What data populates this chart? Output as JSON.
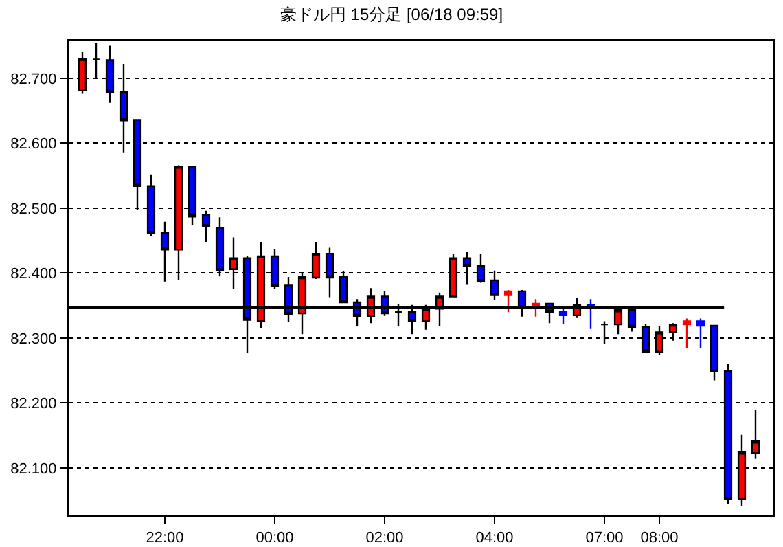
{
  "chart_data": {
    "type": "candlestick",
    "title": "豪ドル円 15分足 [06/18 09:59]",
    "categories": [
      null,
      null,
      null,
      null,
      null,
      null,
      "22:00",
      null,
      null,
      null,
      null,
      null,
      null,
      null,
      "00:00",
      null,
      null,
      null,
      null,
      null,
      null,
      null,
      "02:00",
      null,
      null,
      null,
      null,
      null,
      null,
      null,
      "04:00",
      null,
      null,
      null,
      null,
      null,
      null,
      null,
      "07:00",
      null,
      null,
      null,
      "08:00",
      null,
      null,
      null,
      null,
      null,
      null,
      null
    ],
    "ohlc": [
      [
        82.681,
        82.74,
        82.676,
        82.73
      ],
      [
        82.729,
        82.754,
        82.699,
        82.729
      ],
      [
        82.728,
        82.75,
        82.662,
        82.678
      ],
      [
        82.679,
        82.722,
        82.586,
        82.635
      ],
      [
        82.636,
        82.636,
        82.497,
        82.534
      ],
      [
        82.534,
        82.552,
        82.457,
        82.461
      ],
      [
        82.462,
        82.479,
        82.387,
        82.436
      ],
      [
        82.436,
        82.566,
        82.389,
        82.564
      ],
      [
        82.564,
        82.564,
        82.474,
        82.487
      ],
      [
        82.489,
        82.496,
        82.448,
        82.472
      ],
      [
        82.47,
        82.486,
        82.395,
        82.404
      ],
      [
        82.406,
        82.455,
        82.376,
        82.423
      ],
      [
        82.423,
        82.426,
        82.277,
        82.328
      ],
      [
        82.326,
        82.448,
        82.315,
        82.426
      ],
      [
        82.426,
        82.437,
        82.376,
        82.38
      ],
      [
        82.381,
        82.394,
        82.325,
        82.337
      ],
      [
        82.338,
        82.4,
        82.306,
        82.394
      ],
      [
        82.393,
        82.448,
        82.391,
        82.43
      ],
      [
        82.43,
        82.439,
        82.363,
        82.393
      ],
      [
        82.394,
        82.403,
        82.355,
        82.355
      ],
      [
        82.355,
        82.36,
        82.318,
        82.334
      ],
      [
        82.334,
        82.377,
        82.323,
        82.364
      ],
      [
        82.364,
        82.372,
        82.334,
        82.338
      ],
      [
        82.34,
        82.352,
        82.318,
        82.34
      ],
      [
        82.34,
        82.351,
        82.306,
        82.326
      ],
      [
        82.326,
        82.351,
        82.313,
        82.345
      ],
      [
        82.345,
        82.37,
        82.318,
        82.364
      ],
      [
        82.364,
        82.429,
        82.364,
        82.423
      ],
      [
        82.423,
        82.433,
        82.382,
        82.411
      ],
      [
        82.411,
        82.429,
        82.385,
        82.387
      ],
      [
        82.389,
        82.404,
        82.359,
        82.366
      ],
      [
        82.366,
        82.374,
        82.34,
        82.372
      ],
      [
        82.372,
        82.374,
        82.333,
        82.347
      ],
      [
        82.347,
        82.36,
        82.333,
        82.353
      ],
      [
        82.353,
        82.354,
        82.323,
        82.34
      ],
      [
        82.34,
        82.346,
        82.321,
        82.335
      ],
      [
        82.335,
        82.362,
        82.331,
        82.351
      ],
      [
        82.351,
        82.36,
        82.314,
        82.348
      ],
      [
        82.321,
        82.326,
        82.291,
        82.321
      ],
      [
        82.321,
        82.343,
        82.306,
        82.343
      ],
      [
        82.343,
        82.345,
        82.31,
        82.317
      ],
      [
        82.317,
        82.321,
        82.279,
        82.279
      ],
      [
        82.279,
        82.319,
        82.274,
        82.309
      ],
      [
        82.309,
        82.323,
        82.296,
        82.321
      ],
      [
        82.321,
        82.33,
        82.284,
        82.326
      ],
      [
        82.326,
        82.33,
        82.284,
        82.319
      ],
      [
        82.319,
        82.319,
        82.235,
        82.249
      ],
      [
        82.249,
        82.26,
        82.045,
        82.052
      ],
      [
        82.052,
        82.151,
        82.041,
        82.124
      ],
      [
        82.123,
        82.189,
        82.114,
        82.141
      ]
    ],
    "colors": [
      "#ff0000",
      "#000000",
      "#0000ff",
      "#0000ff",
      "#0000ff",
      "#0000ff",
      "#0000ff",
      "#ff0000",
      "#0000ff",
      "#0000ff",
      "#0000ff",
      "#ff0000",
      "#0000ff",
      "#ff0000",
      "#0000ff",
      "#0000ff",
      "#ff0000",
      "#ff0000",
      "#0000ff",
      "#0000ff",
      "#0000ff",
      "#ff0000",
      "#0000ff",
      "#000000",
      "#0000ff",
      "#ff0000",
      "#ff0000",
      "#ff0000",
      "#0000ff",
      "#0000ff",
      "#0000ff",
      "#ff0000",
      "#0000ff",
      "#ff0000",
      "#0000ff",
      "#0000ff",
      "#ff0000",
      "#0000ff",
      "#000000",
      "#ff0000",
      "#0000ff",
      "#0000ff",
      "#ff0000",
      "#ff0000",
      "#ff0000",
      "#0000ff",
      "#0000ff",
      "#0000ff",
      "#ff0000",
      "#ff0000"
    ],
    "ylim": [
      82.027,
      82.757
    ],
    "yticks": [
      {
        "value": 82.1,
        "label": "82.100"
      },
      {
        "value": 82.2,
        "label": "82.200"
      },
      {
        "value": 82.3,
        "label": "82.300"
      },
      {
        "value": 82.4,
        "label": "82.400"
      },
      {
        "value": 82.5,
        "label": "82.500"
      },
      {
        "value": 82.6,
        "label": "82.600"
      },
      {
        "value": 82.7,
        "label": "82.700"
      }
    ],
    "grid": "y",
    "ref_lines": [
      {
        "axis": "y",
        "value": 82.347,
        "color": "#000000"
      }
    ]
  }
}
